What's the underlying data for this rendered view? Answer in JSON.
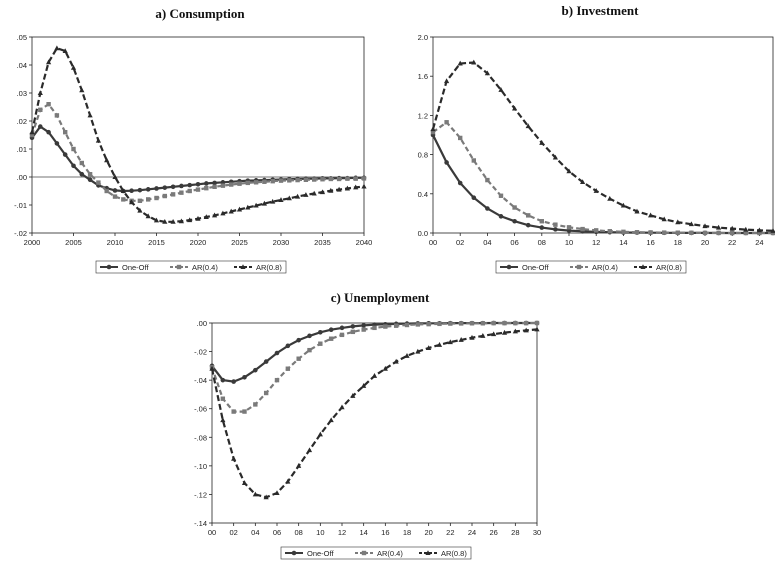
{
  "colors": {
    "one_off": "#3a3a3a",
    "ar04": "#7a7a7a",
    "ar08": "#2a2a2a",
    "axis": "#222222",
    "zero_line": "#444444"
  },
  "legend_labels": [
    "One-Off",
    "AR(0.4)",
    "AR(0.8)"
  ],
  "chart_data": [
    {
      "type": "line",
      "title": "a) Consumption",
      "x": [
        2000,
        2001,
        2002,
        2003,
        2004,
        2005,
        2006,
        2007,
        2008,
        2009,
        2010,
        2011,
        2012,
        2013,
        2014,
        2015,
        2016,
        2017,
        2018,
        2019,
        2020,
        2021,
        2022,
        2023,
        2024,
        2025,
        2026,
        2027,
        2028,
        2029,
        2030,
        2031,
        2032,
        2033,
        2034,
        2035,
        2036,
        2037,
        2038,
        2039,
        2040
      ],
      "xlim": [
        2000,
        2040
      ],
      "ylim": [
        -0.02,
        0.05
      ],
      "xticks": [
        2000,
        2005,
        2010,
        2015,
        2020,
        2025,
        2030,
        2035,
        2040
      ],
      "xtick_labels": [
        "2000",
        "2005",
        "2010",
        "2015",
        "2020",
        "2025",
        "2030",
        "2035",
        "2040"
      ],
      "yticks": [
        -0.02,
        -0.01,
        0,
        0.01,
        0.02,
        0.03,
        0.04,
        0.05
      ],
      "ytick_labels": [
        "-.02",
        "-.01",
        ".00",
        ".01",
        ".02",
        ".03",
        ".04",
        ".05"
      ],
      "zero_line": true,
      "legend": "bottom",
      "series": [
        {
          "name": "One-Off",
          "values": [
            0.014,
            0.018,
            0.016,
            0.012,
            0.008,
            0.004,
            0.001,
            -0.001,
            -0.003,
            -0.004,
            -0.0048,
            -0.005,
            -0.0049,
            -0.0047,
            -0.0044,
            -0.0041,
            -0.0038,
            -0.0035,
            -0.0032,
            -0.0029,
            -0.0026,
            -0.0023,
            -0.0021,
            -0.0019,
            -0.0017,
            -0.0015,
            -0.0013,
            -0.0012,
            -0.0011,
            -0.001,
            -0.0009,
            -0.0008,
            -0.0007,
            -0.0006,
            -0.0006,
            -0.0005,
            -0.0005,
            -0.0004,
            -0.0004,
            -0.0003,
            -0.0003
          ]
        },
        {
          "name": "AR(0.4)",
          "values": [
            0.015,
            0.024,
            0.026,
            0.022,
            0.016,
            0.01,
            0.005,
            0.001,
            -0.002,
            -0.005,
            -0.007,
            -0.008,
            -0.0085,
            -0.0085,
            -0.008,
            -0.0075,
            -0.0068,
            -0.0062,
            -0.0056,
            -0.005,
            -0.0045,
            -0.004,
            -0.0035,
            -0.0031,
            -0.0027,
            -0.0024,
            -0.0021,
            -0.0019,
            -0.0017,
            -0.0015,
            -0.0013,
            -0.0012,
            -0.0011,
            -0.001,
            -0.0009,
            -0.0008,
            -0.0007,
            -0.0007,
            -0.0006,
            -0.0006,
            -0.0005
          ]
        },
        {
          "name": "AR(0.8)",
          "values": [
            0.016,
            0.03,
            0.041,
            0.046,
            0.045,
            0.039,
            0.031,
            0.022,
            0.013,
            0.006,
            0.0,
            -0.005,
            -0.009,
            -0.012,
            -0.014,
            -0.0155,
            -0.016,
            -0.016,
            -0.0158,
            -0.0154,
            -0.0149,
            -0.0143,
            -0.0137,
            -0.013,
            -0.0123,
            -0.0116,
            -0.0109,
            -0.0102,
            -0.0095,
            -0.0088,
            -0.0082,
            -0.0076,
            -0.007,
            -0.0064,
            -0.0059,
            -0.0054,
            -0.0049,
            -0.0045,
            -0.0041,
            -0.0037,
            -0.0034
          ]
        }
      ]
    },
    {
      "type": "line",
      "title": "b) Investment",
      "x": [
        0,
        1,
        2,
        3,
        4,
        5,
        6,
        7,
        8,
        9,
        10,
        11,
        12,
        13,
        14,
        15,
        16,
        17,
        18,
        19,
        20,
        21,
        22,
        23,
        24,
        25
      ],
      "xlim": [
        0,
        25
      ],
      "ylim": [
        0,
        2.0
      ],
      "xticks": [
        0,
        2,
        4,
        6,
        8,
        10,
        12,
        14,
        16,
        18,
        20,
        22,
        24
      ],
      "xtick_labels": [
        "00",
        "02",
        "04",
        "06",
        "08",
        "10",
        "12",
        "14",
        "16",
        "18",
        "20",
        "22",
        "24"
      ],
      "yticks": [
        0,
        0.4,
        0.8,
        1.2,
        1.6,
        2.0
      ],
      "ytick_labels": [
        "0.0",
        "0.4",
        "0.8",
        "1.2",
        "1.6",
        "2.0"
      ],
      "legend": "bottom",
      "series": [
        {
          "name": "One-Off",
          "values": [
            1.0,
            0.72,
            0.51,
            0.36,
            0.25,
            0.17,
            0.12,
            0.08,
            0.055,
            0.037,
            0.025,
            0.017,
            0.012,
            0.008,
            0.005,
            0.004,
            0.003,
            0.002,
            0.001,
            0.001,
            0.001,
            0.0,
            0.0,
            0.0,
            0.0,
            0.0
          ]
        },
        {
          "name": "AR(0.4)",
          "values": [
            1.03,
            1.13,
            0.97,
            0.74,
            0.54,
            0.38,
            0.26,
            0.18,
            0.12,
            0.085,
            0.058,
            0.04,
            0.027,
            0.018,
            0.012,
            0.008,
            0.006,
            0.004,
            0.003,
            0.002,
            0.001,
            0.001,
            0.0,
            0.0,
            0.0,
            0.0
          ]
        },
        {
          "name": "AR(0.8)",
          "values": [
            1.06,
            1.55,
            1.73,
            1.74,
            1.63,
            1.46,
            1.27,
            1.09,
            0.92,
            0.77,
            0.63,
            0.52,
            0.43,
            0.35,
            0.28,
            0.22,
            0.18,
            0.14,
            0.11,
            0.09,
            0.07,
            0.055,
            0.045,
            0.035,
            0.028,
            0.022
          ]
        }
      ]
    },
    {
      "type": "line",
      "title": "c) Unemployment",
      "x": [
        0,
        1,
        2,
        3,
        4,
        5,
        6,
        7,
        8,
        9,
        10,
        11,
        12,
        13,
        14,
        15,
        16,
        17,
        18,
        19,
        20,
        21,
        22,
        23,
        24,
        25,
        26,
        27,
        28,
        29,
        30
      ],
      "xlim": [
        0,
        30
      ],
      "ylim": [
        -0.14,
        0
      ],
      "xticks": [
        0,
        2,
        4,
        6,
        8,
        10,
        12,
        14,
        16,
        18,
        20,
        22,
        24,
        26,
        28,
        30
      ],
      "xtick_labels": [
        "00",
        "02",
        "04",
        "06",
        "08",
        "10",
        "12",
        "14",
        "16",
        "18",
        "20",
        "22",
        "24",
        "26",
        "28",
        "30"
      ],
      "yticks": [
        -0.14,
        -0.12,
        -0.1,
        -0.08,
        -0.06,
        -0.04,
        -0.02,
        0
      ],
      "ytick_labels": [
        "-.14",
        "-.12",
        "-.10",
        "-.08",
        "-.06",
        "-.04",
        "-.02",
        ".00"
      ],
      "legend": "bottom",
      "series": [
        {
          "name": "One-Off",
          "values": [
            -0.03,
            -0.04,
            -0.041,
            -0.038,
            -0.033,
            -0.027,
            -0.021,
            -0.016,
            -0.012,
            -0.009,
            -0.0065,
            -0.0047,
            -0.0034,
            -0.0024,
            -0.0017,
            -0.0012,
            -0.0009,
            -0.0006,
            -0.0004,
            -0.0003,
            -0.0002,
            -0.0002,
            -0.0001,
            -0.0001,
            -0.0001,
            -0.0001,
            0.0,
            0.0,
            0.0,
            0.0,
            0.0
          ]
        },
        {
          "name": "AR(0.4)",
          "values": [
            -0.031,
            -0.053,
            -0.062,
            -0.062,
            -0.057,
            -0.049,
            -0.04,
            -0.032,
            -0.025,
            -0.019,
            -0.0145,
            -0.011,
            -0.0083,
            -0.0062,
            -0.0046,
            -0.0034,
            -0.0025,
            -0.0019,
            -0.0014,
            -0.001,
            -0.0008,
            -0.0006,
            -0.0004,
            -0.0003,
            -0.0002,
            -0.0002,
            -0.0001,
            -0.0001,
            -0.0001,
            -0.0001,
            0.0
          ]
        },
        {
          "name": "AR(0.8)",
          "values": [
            -0.032,
            -0.068,
            -0.095,
            -0.112,
            -0.12,
            -0.122,
            -0.119,
            -0.111,
            -0.1,
            -0.089,
            -0.078,
            -0.068,
            -0.059,
            -0.051,
            -0.044,
            -0.037,
            -0.032,
            -0.027,
            -0.023,
            -0.02,
            -0.0175,
            -0.0153,
            -0.0134,
            -0.0118,
            -0.0103,
            -0.009,
            -0.0078,
            -0.0068,
            -0.0059,
            -0.0052,
            -0.0045
          ]
        }
      ]
    }
  ]
}
